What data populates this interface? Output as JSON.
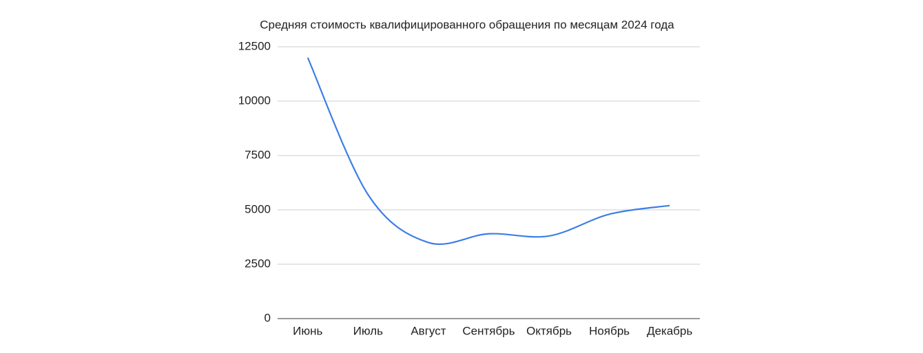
{
  "chart_data": {
    "type": "line",
    "title": "Средняя стоимость квалифицированного обращения по месяцам 2024 года",
    "categories": [
      "Июнь",
      "Июль",
      "Август",
      "Сентябрь",
      "Октябрь",
      "Ноябрь",
      "Декабрь"
    ],
    "series": [
      {
        "name": "Средняя стоимость",
        "color": "#3c7ee6",
        "values": [
          12000,
          5700,
          3500,
          3900,
          3800,
          4800,
          5200
        ]
      }
    ],
    "ylim": [
      0,
      12500
    ],
    "yticks": [
      0,
      2500,
      5000,
      7500,
      10000,
      12500
    ],
    "grid": true,
    "smooth": true
  }
}
